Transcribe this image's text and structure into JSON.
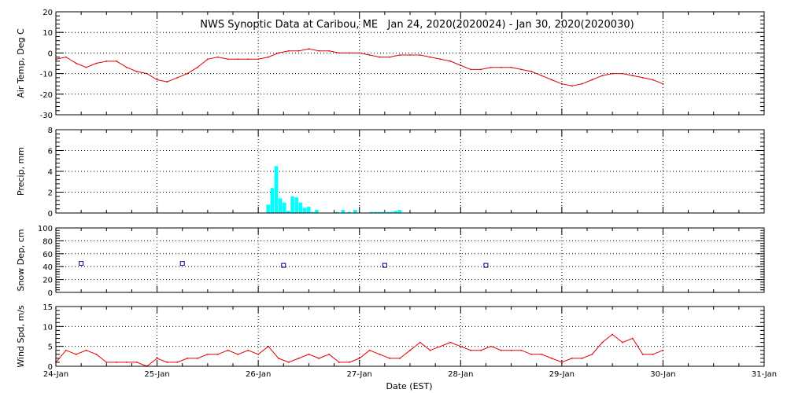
{
  "chart_data": {
    "type": "line",
    "title": "NWS Synoptic Data at Caribou, ME   Jan 24, 2020(2020024) - Jan 30, 2020(2020030)",
    "xlabel": "Date (EST)",
    "x_range": [
      0,
      7
    ],
    "x_tick_labels": [
      "24-Jan",
      "25-Jan",
      "26-Jan",
      "27-Jan",
      "28-Jan",
      "29-Jan",
      "30-Jan",
      "31-Jan"
    ],
    "grid": true,
    "colors": {
      "line": "#dd0000",
      "bar": "#00ffff",
      "marker": "#000080",
      "grid": "#000000"
    },
    "panels": [
      {
        "id": "airtemp",
        "type": "line",
        "ylabel": "Air Temp, Deg C",
        "ylim": [
          -30,
          20
        ],
        "yticks": [
          -30,
          -20,
          -10,
          0,
          10,
          20
        ],
        "x": [
          0.0,
          0.1,
          0.2,
          0.3,
          0.4,
          0.5,
          0.6,
          0.7,
          0.8,
          0.9,
          1.0,
          1.1,
          1.2,
          1.3,
          1.4,
          1.5,
          1.6,
          1.7,
          1.8,
          1.9,
          2.0,
          2.1,
          2.2,
          2.3,
          2.4,
          2.5,
          2.6,
          2.7,
          2.8,
          2.9,
          3.0,
          3.1,
          3.2,
          3.3,
          3.4,
          3.5,
          3.6,
          3.7,
          3.8,
          3.9,
          4.0,
          4.1,
          4.2,
          4.3,
          4.4,
          4.5,
          4.6,
          4.7,
          4.8,
          4.9,
          5.0,
          5.1,
          5.2,
          5.3,
          5.4,
          5.5,
          5.6,
          5.7,
          5.8,
          5.9,
          6.0
        ],
        "y": [
          -3,
          -2,
          -5,
          -7,
          -5,
          -4,
          -4,
          -7,
          -9,
          -10,
          -13,
          -14,
          -12,
          -10,
          -7,
          -3,
          -2,
          -3,
          -3,
          -3,
          -3,
          -2,
          0,
          1,
          1,
          2,
          1,
          1,
          0,
          0,
          0,
          -1,
          -2,
          -2,
          -1,
          -1,
          -1,
          -2,
          -3,
          -4,
          -6,
          -8,
          -8,
          -7,
          -7,
          -7,
          -8,
          -9,
          -11,
          -13,
          -15,
          -16,
          -15,
          -13,
          -11,
          -10,
          -10,
          -11,
          -12,
          -13,
          -15
        ]
      },
      {
        "id": "precip",
        "type": "bar",
        "ylabel": "Precip, mm",
        "ylim": [
          0,
          8
        ],
        "yticks": [
          0,
          2,
          4,
          6,
          8
        ],
        "bar_width": 0.04,
        "x": [
          2.1,
          2.14,
          2.18,
          2.22,
          2.26,
          2.3,
          2.34,
          2.38,
          2.42,
          2.46,
          2.5,
          2.54,
          2.58,
          2.62,
          2.78,
          2.84,
          2.9,
          2.96,
          3.02,
          3.08,
          3.12,
          3.16,
          3.2,
          3.24,
          3.28,
          3.32,
          3.36,
          3.4
        ],
        "values": [
          0.8,
          2.4,
          4.5,
          1.4,
          1.0,
          0.2,
          1.6,
          1.5,
          1.0,
          0.5,
          0.6,
          0.1,
          0.3,
          0.0,
          0.1,
          0.3,
          0.1,
          0.3,
          0.0,
          0.0,
          0.1,
          0.1,
          0.1,
          0.1,
          0.1,
          0.1,
          0.2,
          0.3
        ]
      },
      {
        "id": "snowdep",
        "type": "scatter",
        "ylabel": "Snow Dep, cm",
        "ylim": [
          0,
          100
        ],
        "yticks": [
          0,
          20,
          40,
          60,
          80,
          100
        ],
        "x": [
          0.25,
          1.25,
          2.25,
          3.25,
          4.25
        ],
        "y": [
          45,
          45,
          42,
          42,
          42
        ]
      },
      {
        "id": "windspd",
        "type": "line",
        "ylabel": "Wind Spd, m/s",
        "ylim": [
          0,
          15
        ],
        "yticks": [
          0,
          5,
          10,
          15
        ],
        "x": [
          0.0,
          0.1,
          0.2,
          0.3,
          0.4,
          0.5,
          0.6,
          0.7,
          0.8,
          0.9,
          1.0,
          1.1,
          1.2,
          1.3,
          1.4,
          1.5,
          1.6,
          1.7,
          1.8,
          1.9,
          2.0,
          2.1,
          2.2,
          2.3,
          2.4,
          2.5,
          2.6,
          2.7,
          2.8,
          2.9,
          3.0,
          3.1,
          3.2,
          3.3,
          3.4,
          3.5,
          3.6,
          3.7,
          3.8,
          3.9,
          4.0,
          4.1,
          4.2,
          4.3,
          4.4,
          4.5,
          4.6,
          4.7,
          4.8,
          4.9,
          5.0,
          5.1,
          5.2,
          5.3,
          5.4,
          5.5,
          5.6,
          5.7,
          5.8,
          5.9,
          6.0
        ],
        "y": [
          1,
          4,
          3,
          4,
          3,
          1,
          1,
          1,
          1,
          0,
          2,
          1,
          1,
          2,
          2,
          3,
          3,
          4,
          3,
          4,
          3,
          5,
          2,
          1,
          2,
          3,
          2,
          3,
          1,
          1,
          2,
          4,
          3,
          2,
          2,
          4,
          6,
          4,
          5,
          6,
          5,
          4,
          4,
          5,
          4,
          4,
          4,
          3,
          3,
          2,
          1,
          2,
          2,
          3,
          6,
          8,
          6,
          7,
          3,
          3,
          4
        ]
      }
    ]
  }
}
